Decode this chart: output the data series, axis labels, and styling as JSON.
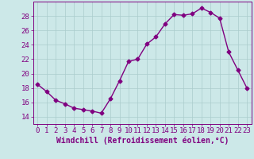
{
  "x": [
    0,
    1,
    2,
    3,
    4,
    5,
    6,
    7,
    8,
    9,
    10,
    11,
    12,
    13,
    14,
    15,
    16,
    17,
    18,
    19,
    20,
    21,
    22,
    23
  ],
  "y": [
    18.5,
    17.5,
    16.3,
    15.8,
    15.2,
    15.0,
    14.8,
    14.5,
    16.5,
    19.0,
    21.7,
    22.0,
    24.1,
    25.1,
    26.9,
    28.2,
    28.1,
    28.3,
    29.1,
    28.5,
    27.7,
    23.0,
    20.5,
    18.0
  ],
  "xlabel": "Windchill (Refroidissement éolien,°C)",
  "ylabel": "",
  "xlim": [
    -0.5,
    23.5
  ],
  "ylim": [
    13,
    30
  ],
  "yticks": [
    14,
    16,
    18,
    20,
    22,
    24,
    26,
    28
  ],
  "xticks": [
    0,
    1,
    2,
    3,
    4,
    5,
    6,
    7,
    8,
    9,
    10,
    11,
    12,
    13,
    14,
    15,
    16,
    17,
    18,
    19,
    20,
    21,
    22,
    23
  ],
  "line_color": "#800080",
  "marker": "D",
  "marker_size": 2.5,
  "background_color": "#cce8e8",
  "grid_color": "#aacccc",
  "tick_color": "#800080",
  "label_color": "#800080",
  "font_size_xlabel": 7,
  "font_size_tick": 6.5
}
